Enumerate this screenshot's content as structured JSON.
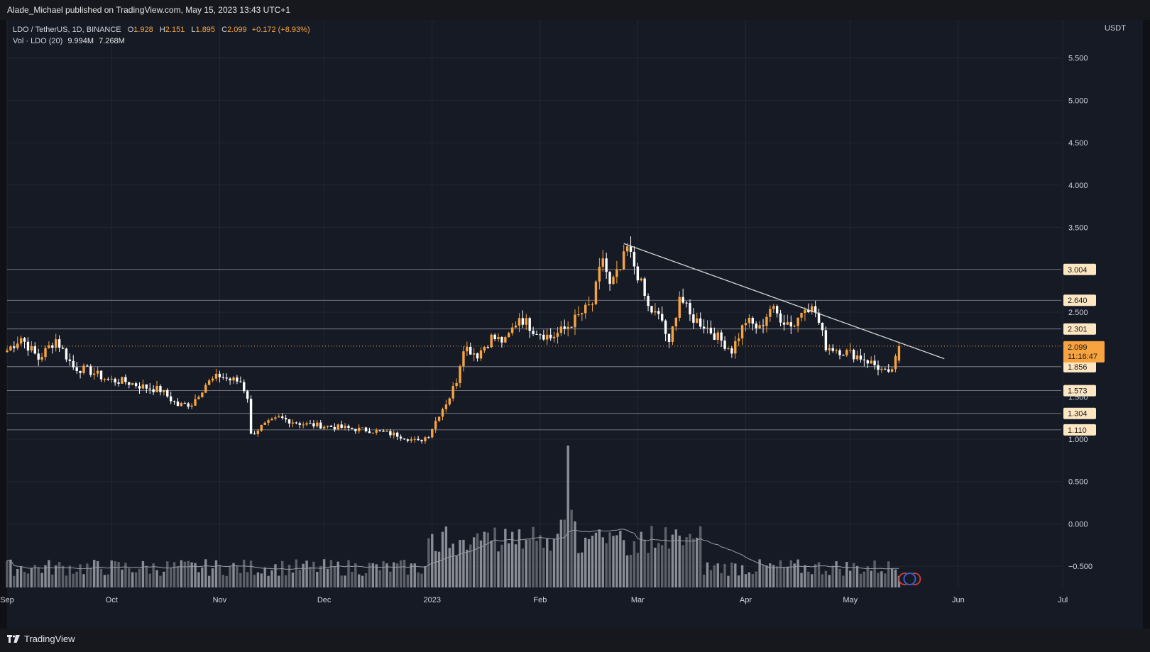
{
  "header": {
    "published": "Alade_Michael published on TradingView.com, May 15, 2023 13:43 UTC+1"
  },
  "footer": {
    "brand": "TradingView"
  },
  "legend": {
    "symbol": "LDO / TetherUS, 1D, BINANCE",
    "open_label": "O",
    "open": "1.928",
    "high_label": "H",
    "high": "2.151",
    "low_label": "L",
    "low": "1.895",
    "close_label": "C",
    "close": "2.099",
    "change": "+0.172 (+8.93%)",
    "volume_label": "Vol · LDO (20)",
    "volume": "9.994M",
    "volume_ma": "7.268M"
  },
  "colors": {
    "up": "#f7a440",
    "down": "#ffffff",
    "background": "#161a25",
    "trendline": "#d6d6d6"
  },
  "chart_data": {
    "type": "candlestick",
    "currency": "USDT",
    "ylim": [
      -0.75,
      5.95
    ],
    "y_ticks": [
      5.5,
      5.0,
      4.5,
      4.0,
      3.5,
      2.5,
      1.5,
      1.0,
      0.5,
      0.0,
      -0.5
    ],
    "y_tick_labels": [
      "5.500",
      "5.000",
      "4.500",
      "4.000",
      "3.500",
      "2.500",
      "1.500",
      "1.000",
      "0.500",
      "0.000",
      "−0.500"
    ],
    "x_ticks": [
      "Sep",
      "Oct",
      "Nov",
      "Dec",
      "2023",
      "Feb",
      "Mar",
      "Apr",
      "May",
      "Jun",
      "Jul"
    ],
    "x_tick_dates": [
      "2022-09-01",
      "2022-10-01",
      "2022-11-01",
      "2022-12-01",
      "2023-01-01",
      "2023-02-01",
      "2023-03-01",
      "2023-04-01",
      "2023-05-01",
      "2023-06-01",
      "2023-07-01"
    ],
    "first_date": "2022-09-01",
    "last_date": "2023-05-15",
    "levels": [
      {
        "value": 3.004,
        "label": "3.004"
      },
      {
        "value": 2.64,
        "label": "2.640"
      },
      {
        "value": 2.301,
        "label": "2.301"
      },
      {
        "value": 1.856,
        "label": "1.856"
      },
      {
        "value": 1.573,
        "label": "1.573"
      },
      {
        "value": 1.304,
        "label": "1.304"
      },
      {
        "value": 1.11,
        "label": "1.110"
      }
    ],
    "last_price": {
      "value": 2.099,
      "label": "2.099",
      "countdown": "11:16:47"
    },
    "trendline": {
      "start": {
        "date": "2023-02-25",
        "value": 3.31
      },
      "end": {
        "date": "2023-05-28",
        "value": 1.95
      }
    },
    "close_anchors": [
      [
        "2022-09-01",
        2.05
      ],
      [
        "2022-09-05",
        2.2
      ],
      [
        "2022-09-10",
        1.95
      ],
      [
        "2022-09-15",
        2.18
      ],
      [
        "2022-09-20",
        1.85
      ],
      [
        "2022-09-25",
        1.8
      ],
      [
        "2022-09-30",
        1.7
      ],
      [
        "2022-10-05",
        1.68
      ],
      [
        "2022-10-10",
        1.62
      ],
      [
        "2022-10-15",
        1.58
      ],
      [
        "2022-10-20",
        1.4
      ],
      [
        "2022-10-24",
        1.42
      ],
      [
        "2022-10-28",
        1.65
      ],
      [
        "2022-11-01",
        1.75
      ],
      [
        "2022-11-04",
        1.7
      ],
      [
        "2022-11-07",
        1.68
      ],
      [
        "2022-11-09",
        1.5
      ],
      [
        "2022-11-10",
        1.05
      ],
      [
        "2022-11-13",
        1.15
      ],
      [
        "2022-11-18",
        1.25
      ],
      [
        "2022-11-25",
        1.18
      ],
      [
        "2022-12-05",
        1.14
      ],
      [
        "2022-12-15",
        1.1
      ],
      [
        "2022-12-22",
        1.05
      ],
      [
        "2022-12-28",
        0.97
      ],
      [
        "2022-12-31",
        1.05
      ],
      [
        "2023-01-03",
        1.3
      ],
      [
        "2023-01-06",
        1.5
      ],
      [
        "2023-01-08",
        1.7
      ],
      [
        "2023-01-10",
        2.1
      ],
      [
        "2023-01-14",
        2.0
      ],
      [
        "2023-01-18",
        2.2
      ],
      [
        "2023-01-22",
        2.15
      ],
      [
        "2023-01-26",
        2.45
      ],
      [
        "2023-01-30",
        2.3
      ],
      [
        "2023-02-04",
        2.2
      ],
      [
        "2023-02-08",
        2.3
      ],
      [
        "2023-02-12",
        2.45
      ],
      [
        "2023-02-16",
        2.6
      ],
      [
        "2023-02-19",
        3.15
      ],
      [
        "2023-02-21",
        2.8
      ],
      [
        "2023-02-24",
        3.0
      ],
      [
        "2023-02-26",
        3.25
      ],
      [
        "2023-03-01",
        2.95
      ],
      [
        "2023-03-04",
        2.55
      ],
      [
        "2023-03-08",
        2.4
      ],
      [
        "2023-03-10",
        2.1
      ],
      [
        "2023-03-13",
        2.7
      ],
      [
        "2023-03-16",
        2.45
      ],
      [
        "2023-03-20",
        2.35
      ],
      [
        "2023-03-24",
        2.2
      ],
      [
        "2023-03-28",
        2.05
      ],
      [
        "2023-04-01",
        2.4
      ],
      [
        "2023-04-05",
        2.3
      ],
      [
        "2023-04-08",
        2.55
      ],
      [
        "2023-04-12",
        2.4
      ],
      [
        "2023-04-15",
        2.35
      ],
      [
        "2023-04-18",
        2.6
      ],
      [
        "2023-04-21",
        2.5
      ],
      [
        "2023-04-24",
        2.1
      ],
      [
        "2023-04-28",
        2.05
      ],
      [
        "2023-05-02",
        2.0
      ],
      [
        "2023-05-05",
        1.95
      ],
      [
        "2023-05-09",
        1.85
      ],
      [
        "2023-05-12",
        1.75
      ],
      [
        "2023-05-14",
        1.93
      ],
      [
        "2023-05-15",
        2.099
      ]
    ],
    "volume_spike": {
      "date": "2023-02-09",
      "relative": 1.0
    }
  }
}
